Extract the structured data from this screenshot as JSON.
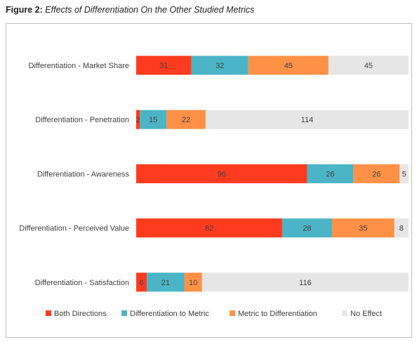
{
  "figure": {
    "number": "Figure 2:",
    "title": "Effects of Differentiation On the Other Studied Metrics"
  },
  "chart_data": {
    "type": "bar",
    "orientation": "horizontal",
    "stacked": "percent",
    "categories": [
      "Differentiation - Market Share",
      "Differentiation - Penetration",
      "Differentiation - Awareness",
      "Differentiation - Perceived Value",
      "Differentiation - Satisfaction"
    ],
    "series": [
      {
        "name": "Both Directions",
        "color": "#ff3b1f",
        "values": [
          31,
          2,
          96,
          82,
          6
        ]
      },
      {
        "name": "Differentiation to Metric",
        "color": "#4bb4c6",
        "values": [
          32,
          15,
          26,
          28,
          21
        ]
      },
      {
        "name": "Metric to Differentiation",
        "color": "#ff9147",
        "values": [
          45,
          22,
          26,
          35,
          10
        ]
      },
      {
        "name": "No Effect",
        "color": "#e6e6e6",
        "values": [
          45,
          114,
          5,
          8,
          116
        ]
      }
    ],
    "grid": false,
    "legend_position": "bottom"
  }
}
